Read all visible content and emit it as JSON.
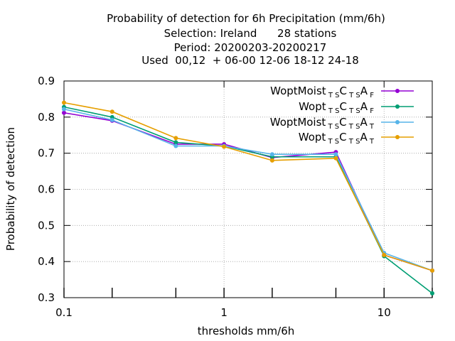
{
  "chart_data": {
    "type": "line",
    "title_lines": [
      "Probability of detection  for 6h Precipitation (mm/6h)",
      "Selection: Ireland      28 stations",
      "Period: 20200203-20200217",
      "Used  00,12  + 06-00 12-06 18-12 24-18"
    ],
    "xlabel": "thresholds mm/6h",
    "ylabel": "Probability of detection",
    "x_scale": "log",
    "xlim": [
      0.1,
      20
    ],
    "ylim": [
      0.3,
      0.9
    ],
    "x_ticks": [
      0.1,
      1,
      10
    ],
    "x_tick_labels": [
      "0.1",
      "1",
      "10"
    ],
    "y_ticks": [
      0.3,
      0.4,
      0.5,
      0.6,
      0.7,
      0.8,
      0.9
    ],
    "y_tick_labels": [
      "0.3",
      "0.4",
      "0.5",
      "0.6",
      "0.7",
      "0.8",
      "0.9"
    ],
    "grid": true,
    "legend_position": "top-right",
    "x": [
      0.1,
      0.2,
      0.5,
      1,
      2,
      5,
      10,
      20
    ],
    "series": [
      {
        "name": "WoptMoist TS CTS AF",
        "legend": {
          "main1": "WoptMoist",
          "sub1": "T S",
          "main2": "C",
          "sub2": "T S",
          "main3": "A",
          "sub3": "F"
        },
        "color": "#9400d3",
        "values": [
          0.812,
          0.79,
          0.725,
          0.725,
          0.688,
          0.703,
          0.418,
          0.375
        ]
      },
      {
        "name": "Wopt TS CTS AF",
        "legend": {
          "main1": "Wopt",
          "sub1": "T S",
          "main2": "C",
          "sub2": "T S",
          "main3": "A",
          "sub3": "F"
        },
        "color": "#009e73",
        "values": [
          0.828,
          0.8,
          0.73,
          0.72,
          0.69,
          0.69,
          0.415,
          0.312
        ]
      },
      {
        "name": "WoptMoist TS CTS AT",
        "legend": {
          "main1": "WoptMoist",
          "sub1": "T S",
          "main2": "C",
          "sub2": "T S",
          "main3": "A",
          "sub3": "T"
        },
        "color": "#56b4e9",
        "values": [
          0.822,
          0.792,
          0.72,
          0.72,
          0.697,
          0.697,
          0.424,
          0.375
        ]
      },
      {
        "name": "Wopt TS CTS AT",
        "legend": {
          "main1": "Wopt",
          "sub1": "T S",
          "main2": "C",
          "sub2": "T S",
          "main3": "A",
          "sub3": "T"
        },
        "color": "#e69f00",
        "values": [
          0.84,
          0.815,
          0.742,
          0.718,
          0.68,
          0.686,
          0.418,
          0.375
        ]
      }
    ]
  }
}
